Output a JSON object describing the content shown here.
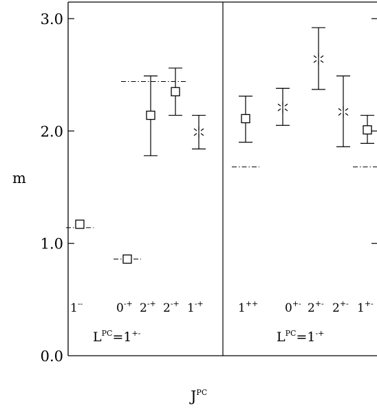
{
  "chart_data": {
    "type": "scatter",
    "xlabel": "J",
    "xlabel_sup": "PC",
    "ylabel": "m",
    "ylim": [
      0,
      3.15
    ],
    "yticks": [
      "0.0",
      "1.0",
      "2.0",
      "3.0"
    ],
    "groups": [
      {
        "label": "L",
        "label_sup": "PC",
        "label_tail": "=1",
        "label_tail_sup": "+-"
      },
      {
        "label": "L",
        "label_sup": "PC",
        "label_tail": "=1",
        "label_tail_sup": "-+"
      }
    ],
    "points": [
      {
        "group": 0,
        "j": "1",
        "pc": "--",
        "marker": "square",
        "m": 1.17,
        "err_hi": 1.17,
        "err_lo": 1.17,
        "ref": 1.14
      },
      {
        "group": 0,
        "j": "0",
        "pc": "-+",
        "marker": "square",
        "m": 0.86,
        "err_hi": 0.86,
        "err_lo": 0.86,
        "ref": 0.86
      },
      {
        "group": 0,
        "j": "2",
        "pc": "-+",
        "marker": "square",
        "m": 2.14,
        "err_hi": 2.49,
        "err_lo": 1.78,
        "ref": 2.44
      },
      {
        "group": 0,
        "j": "2",
        "pc": "-+",
        "marker": "square",
        "m": 2.35,
        "err_hi": 2.56,
        "err_lo": 2.14,
        "ref": 2.44
      },
      {
        "group": 0,
        "j": "1",
        "pc": "-+",
        "marker": "star",
        "m": 1.99,
        "err_hi": 2.14,
        "err_lo": 1.84,
        "ref": null
      },
      {
        "group": 1,
        "j": "1",
        "pc": "++",
        "marker": "square",
        "m": 2.11,
        "err_hi": 2.31,
        "err_lo": 1.9,
        "ref": 1.68
      },
      {
        "group": 1,
        "j": "0",
        "pc": "+-",
        "marker": "star",
        "m": 2.21,
        "err_hi": 2.38,
        "err_lo": 2.05,
        "ref": null
      },
      {
        "group": 1,
        "j": "2",
        "pc": "+-",
        "marker": "star",
        "m": 2.64,
        "err_hi": 2.92,
        "err_lo": 2.37,
        "ref": null
      },
      {
        "group": 1,
        "j": "2",
        "pc": "+-",
        "marker": "star",
        "m": 2.17,
        "err_hi": 2.49,
        "err_lo": 1.86,
        "ref": null
      },
      {
        "group": 1,
        "j": "1",
        "pc": "+-",
        "marker": "square",
        "m": 2.01,
        "err_hi": 2.14,
        "err_lo": 1.89,
        "ref": 1.68
      }
    ]
  }
}
